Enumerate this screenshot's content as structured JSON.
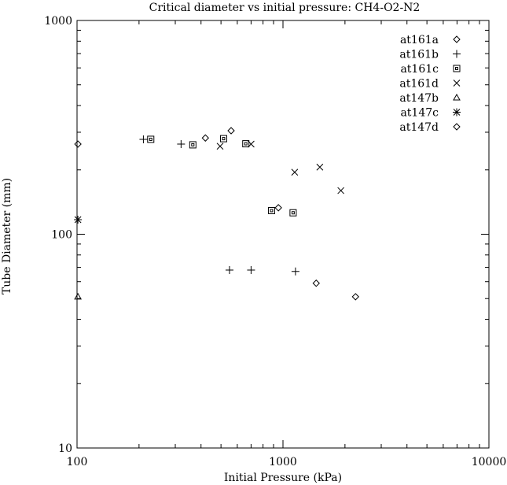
{
  "chart_data": {
    "type": "scatter",
    "title": "Critical diameter vs initial pressure: CH4-O2-N2",
    "xlabel": "Initial Pressure (kPa)",
    "ylabel": "Tube Diameter (mm)",
    "x_scale": "log",
    "y_scale": "log",
    "xlim": [
      100,
      10000
    ],
    "ylim": [
      10,
      1000
    ],
    "x_ticks": [
      "100",
      "1000",
      "10000"
    ],
    "y_ticks": [
      "10",
      "100",
      "1000"
    ],
    "grid": false,
    "legend_position": "top-right",
    "series": [
      {
        "name": "at161a",
        "marker": "diamond",
        "points": [
          [
            420,
            282
          ],
          [
            560,
            305
          ],
          [
            950,
            133
          ],
          [
            1450,
            59
          ],
          [
            2250,
            51
          ]
        ]
      },
      {
        "name": "at161b",
        "marker": "plus",
        "points": [
          [
            210,
            278
          ],
          [
            320,
            264
          ],
          [
            550,
            68
          ],
          [
            700,
            68
          ],
          [
            1150,
            67
          ]
        ]
      },
      {
        "name": "at161c",
        "marker": "square",
        "points": [
          [
            228,
            278
          ],
          [
            365,
            262
          ],
          [
            515,
            280
          ],
          [
            660,
            265
          ],
          [
            880,
            129
          ],
          [
            1120,
            126
          ]
        ]
      },
      {
        "name": "at161d",
        "marker": "cross",
        "points": [
          [
            495,
            258
          ],
          [
            700,
            264
          ],
          [
            1140,
            195
          ],
          [
            1510,
            206
          ],
          [
            1910,
            160
          ]
        ]
      },
      {
        "name": "at147b",
        "marker": "triangle",
        "points": [
          [
            101,
            51
          ]
        ]
      },
      {
        "name": "at147c",
        "marker": "star",
        "points": [
          [
            101,
            117
          ]
        ]
      },
      {
        "name": "at147d",
        "marker": "diamond",
        "points": [
          [
            101,
            264
          ]
        ]
      }
    ]
  }
}
